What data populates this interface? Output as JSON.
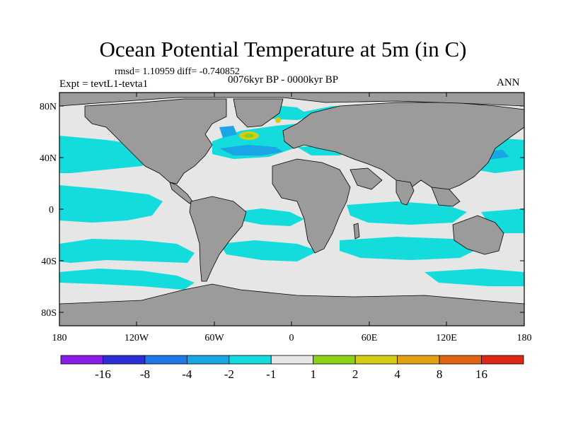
{
  "title": "Ocean Potential Temperature at 5m (in C)",
  "stats": "rmsd= 1.10959 diff= -0.740852",
  "period": "0076kyr BP - 0000kyr BP",
  "experiment": "Expt = tevtL1-tevta1",
  "season": "ANN",
  "lat_labels": [
    "80N",
    "40N",
    "0",
    "40S",
    "80S"
  ],
  "lon_labels": [
    "180",
    "120W",
    "60W",
    "0",
    "60E",
    "120E",
    "180"
  ],
  "colorbar": {
    "labels": [
      "-16",
      "-8",
      "-4",
      "-2",
      "-1",
      "1",
      "2",
      "4",
      "8",
      "16"
    ],
    "colors": [
      "#8a1ee6",
      "#2d2dd6",
      "#1e78e6",
      "#19a5e6",
      "#14dcdc",
      "#e6e6e6",
      "#8cd214",
      "#d2cd14",
      "#e1a014",
      "#e16414",
      "#dc2814"
    ]
  },
  "map_colors": {
    "land": "#9b9b9b",
    "ocean_neutral": "#e6e6e6",
    "cool_light": "#14dcdc",
    "cool_mid": "#19a5e6",
    "cool_strong": "#1e78e6",
    "warm_yellow": "#d2cd14",
    "warm_green": "#8cd214",
    "coastline": "#000000"
  }
}
